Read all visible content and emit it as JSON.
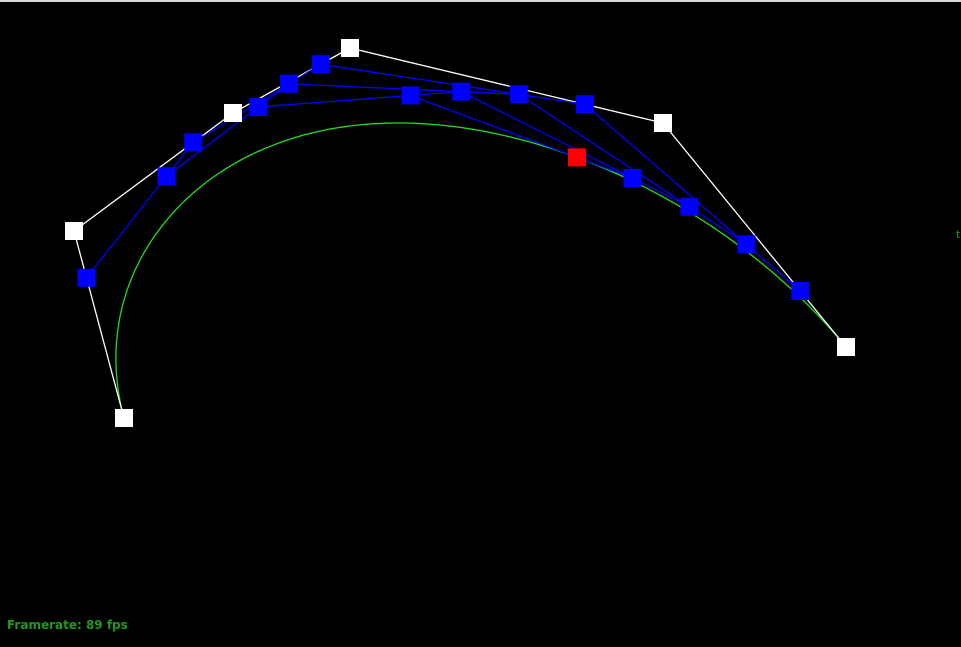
{
  "hud": {
    "framerate_label": "Framerate: 89 fps",
    "edge_glyph": "t"
  },
  "colors": {
    "background": "#000000",
    "control_point": "#ffffff",
    "control_polygon": "#ffffff",
    "intermediate_point": "#0000ff",
    "intermediate_line": "#0000ff",
    "evaluated_point": "#ff0000",
    "curve": "#22dd22",
    "hud_text": "#1f9a1f"
  }
}
